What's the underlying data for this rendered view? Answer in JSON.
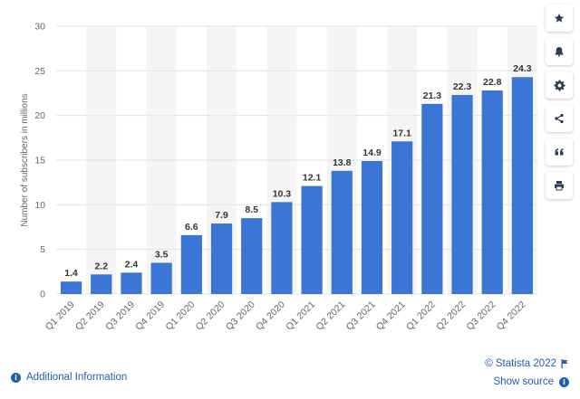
{
  "chart_data": {
    "type": "bar",
    "categories": [
      "Q1 2019",
      "Q2 2019",
      "Q3 2019",
      "Q4 2019",
      "Q1 2020",
      "Q2 2020",
      "Q3 2020",
      "Q4 2020",
      "Q1 2021",
      "Q2 2021",
      "Q3 2021",
      "Q4 2021",
      "Q1 2022",
      "Q2 2022",
      "Q3 2022",
      "Q4 2022"
    ],
    "values": [
      1.4,
      2.2,
      2.4,
      3.5,
      6.6,
      7.9,
      8.5,
      10.3,
      12.1,
      13.8,
      14.9,
      17.1,
      21.3,
      22.3,
      22.8,
      24.3
    ],
    "data_labels": [
      "1.4",
      "2.2",
      "2.4",
      "3.5",
      "6.6",
      "7.9",
      "8.5",
      "10.3",
      "12.1",
      "13.8",
      "14.9",
      "17.1",
      "21.3",
      "22.3",
      "22.8",
      "24.3"
    ],
    "title": "",
    "xlabel": "",
    "ylabel": "Number of subscribers in millions",
    "ylim": [
      0,
      30
    ],
    "yticks": [
      0,
      5,
      10,
      15,
      20,
      25,
      30
    ],
    "ytick_labels": [
      "0",
      "5",
      "10",
      "15",
      "20",
      "25",
      "30"
    ],
    "grid": true,
    "bar_color": "#3b75d6",
    "alt_band_color": "#f5f5f5",
    "grid_color": "#e3e3e3"
  },
  "toolbar": {
    "buttons": [
      {
        "name": "favorite-button",
        "icon": "star-icon"
      },
      {
        "name": "notification-button",
        "icon": "bell-icon"
      },
      {
        "name": "settings-button",
        "icon": "gear-icon"
      },
      {
        "name": "share-button",
        "icon": "share-icon"
      },
      {
        "name": "cite-button",
        "icon": "quote-icon"
      },
      {
        "name": "print-button",
        "icon": "print-icon"
      }
    ],
    "icon_color": "#2b3a55"
  },
  "footer": {
    "additional_info": "Additional Information",
    "copyright": "© Statista 2022",
    "show_source": "Show source"
  }
}
